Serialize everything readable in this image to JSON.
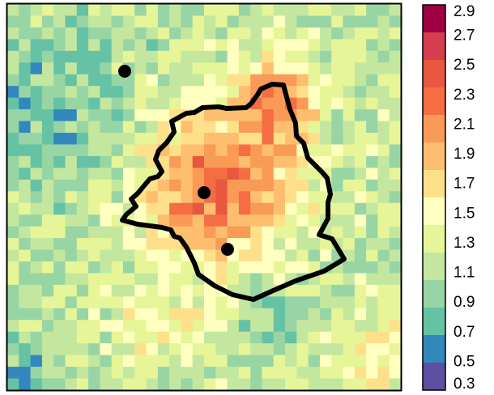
{
  "colorbar": {
    "labels": [
      "2.9",
      "2.7",
      "2.5",
      "2.3",
      "2.1",
      "1.9",
      "1.7",
      "1.5",
      "1.3",
      "1.1",
      "0.9",
      "0.7",
      "0.5",
      "0.3"
    ],
    "values": [
      2.9,
      2.7,
      2.5,
      2.3,
      2.1,
      1.9,
      1.7,
      1.5,
      1.3,
      1.1,
      0.9,
      0.7,
      0.5,
      0.3
    ],
    "colors": [
      "#9e0142",
      "#d53e4f",
      "#e8573f",
      "#f46d43",
      "#f99a57",
      "#fdbe6f",
      "#fee08b",
      "#ffffbf",
      "#e6f598",
      "#c4e79f",
      "#98d5a4",
      "#66c2a5",
      "#3288bd",
      "#5e4fa2"
    ]
  },
  "grid": {
    "cols": 34,
    "rows": 33,
    "value_range": [
      0.3,
      2.9
    ]
  },
  "markers": [
    "site-west",
    "site-center",
    "site-south"
  ],
  "colors": {
    "boundary": "#000000",
    "frame": "#000000"
  }
}
